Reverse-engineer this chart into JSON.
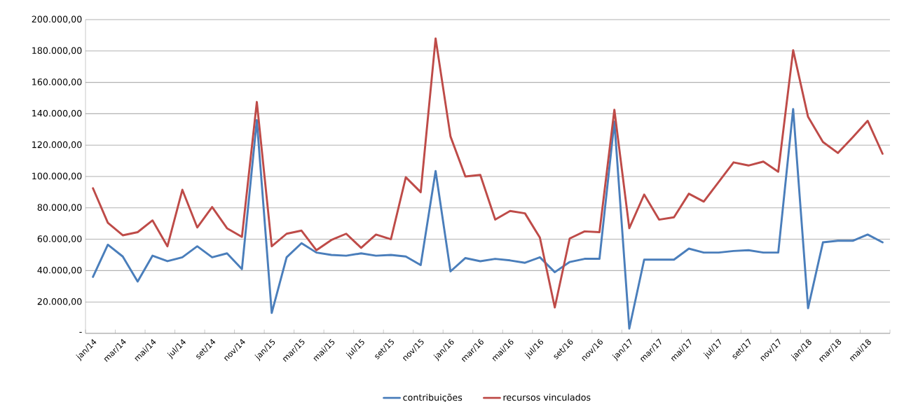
{
  "chart_data": {
    "type": "line",
    "categories": [
      "jan/14",
      null,
      "mar/14",
      null,
      "mai/14",
      null,
      "jul/14",
      null,
      "set/14",
      null,
      "nov/14",
      null,
      "jan/15",
      null,
      "mar/15",
      null,
      "mai/15",
      null,
      "jul/15",
      null,
      "set/15",
      null,
      "nov/15",
      null,
      "jan/16",
      null,
      "mar/16",
      null,
      "mai/16",
      null,
      "jul/16",
      null,
      "set/16",
      null,
      "nov/16",
      null,
      "jan/17",
      null,
      "mar/17",
      null,
      "mai/17",
      null,
      "jul/17",
      null,
      "set/17",
      null,
      "nov/17",
      null,
      "jan/18",
      null,
      "mar/18",
      null,
      "mai/18",
      null
    ],
    "series": [
      {
        "name": "contribuições",
        "color": "#4a7ebb",
        "values": [
          36000,
          56500,
          49000,
          33000,
          49500,
          46000,
          48500,
          55500,
          48500,
          51000,
          41000,
          136000,
          13000,
          48500,
          57500,
          51500,
          50000,
          49500,
          51000,
          49500,
          50000,
          49000,
          43500,
          103500,
          39500,
          48000,
          46000,
          47500,
          46500,
          45000,
          48500,
          39000,
          45500,
          47500,
          47500,
          135000,
          3000,
          47000,
          47000,
          47000,
          54000,
          51500,
          51500,
          52500,
          53000,
          51500,
          51500,
          143000,
          16000,
          58000,
          59000,
          59000,
          63000,
          58000
        ]
      },
      {
        "name": "recursos vinculados",
        "color": "#be4b48",
        "values": [
          92500,
          70500,
          62500,
          64500,
          72000,
          55500,
          91500,
          67500,
          80500,
          67000,
          61500,
          147500,
          55500,
          63500,
          65500,
          53000,
          59500,
          63500,
          54500,
          63000,
          60000,
          99500,
          90000,
          188000,
          125500,
          100000,
          101000,
          72500,
          78000,
          76500,
          61000,
          16500,
          60500,
          65000,
          64500,
          142500,
          67000,
          88500,
          72500,
          74000,
          89000,
          84000,
          96500,
          109000,
          107000,
          109500,
          103000,
          180500,
          138000,
          122000,
          115000,
          125000,
          135500,
          114500
        ]
      }
    ],
    "ylim": [
      0,
      200000
    ],
    "yticks": [
      {
        "value": 0,
        "label": "-"
      },
      {
        "value": 20000,
        "label": "20.000,00"
      },
      {
        "value": 40000,
        "label": "40.000,00"
      },
      {
        "value": 60000,
        "label": "60.000,00"
      },
      {
        "value": 80000,
        "label": "80.000,00"
      },
      {
        "value": 100000,
        "label": "100.000,00"
      },
      {
        "value": 120000,
        "label": "120.000,00"
      },
      {
        "value": 140000,
        "label": "140.000,00"
      },
      {
        "value": 160000,
        "label": "160.000,00"
      },
      {
        "value": 180000,
        "label": "180.000,00"
      },
      {
        "value": 200000,
        "label": "200.000,00"
      }
    ],
    "grid": "y",
    "legend": "bottom",
    "marker": "none",
    "line_style": "solid"
  }
}
